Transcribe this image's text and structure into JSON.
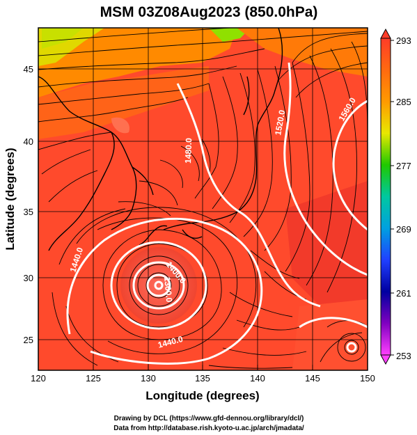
{
  "title": "MSM 03Z08Aug2023 (850.0hPa)",
  "xlabel": "Longitude (degrees)",
  "ylabel": "Latitude  (degrees)",
  "x_ticks": [
    "120",
    "125",
    "130",
    "135",
    "140",
    "145",
    "150"
  ],
  "y_ticks": [
    "25",
    "30",
    "35",
    "40",
    "45"
  ],
  "colorbar": {
    "ticks": [
      "293",
      "285",
      "277",
      "269",
      "261",
      "253"
    ],
    "colors": {
      "top": "#ff3c28",
      "orange": "#ff9a00",
      "yellow": "#e8e800",
      "green": "#20c800",
      "cyan": "#00d2d2",
      "blue": "#2040ff",
      "navy": "#0000a0",
      "magenta": "#ff40ff"
    }
  },
  "contour_labels": [
    "1440.0",
    "1480.0",
    "1520.0",
    "1560.0",
    "1400.0",
    "1360.0",
    "1440.0"
  ],
  "credits": {
    "line1": "Drawing by DCL (https://www.gfd-dennou.org/library/dcl/)",
    "line2": "Data from http://database.rish.kyoto-u.ac.jp/arch/jmadata/"
  },
  "chart_data": {
    "type": "heatmap",
    "title": "MSM 03Z08Aug2023 (850.0hPa)",
    "xlabel": "Longitude (degrees)",
    "ylabel": "Latitude  (degrees)",
    "xlim": [
      120,
      150
    ],
    "ylim": [
      22.5,
      47.5
    ],
    "colorbar_range": [
      253,
      293
    ],
    "colorbar_ticks": [
      293,
      285,
      277,
      269,
      261,
      253
    ],
    "overlays": [
      "geopotential height contours",
      "wind streamlines",
      "coastlines"
    ],
    "contours": [
      1360,
      1400,
      1440,
      1480,
      1520,
      1560
    ],
    "typhoon_center": {
      "lon": 131,
      "lat": 29.3
    },
    "secondary_low": {
      "lon": 148.3,
      "lat": 24.4
    }
  }
}
